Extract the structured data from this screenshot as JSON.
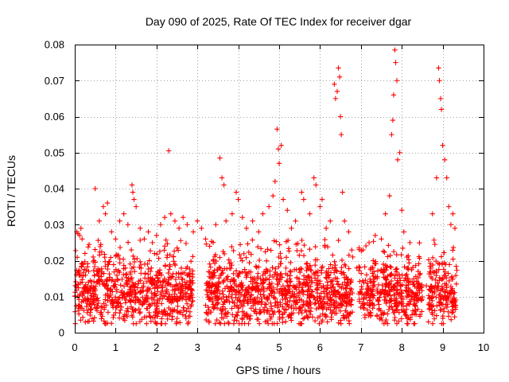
{
  "chart_data": {
    "type": "scatter",
    "title": "Day 090 of 2025, Rate Of TEC Index for receiver dgar",
    "xlabel": "GPS time / hours",
    "ylabel": "ROTI / TECUs",
    "xlim": [
      0,
      10
    ],
    "ylim": [
      0,
      0.08
    ],
    "x_ticks": [
      "0",
      "1",
      "2",
      "3",
      "4",
      "5",
      "6",
      "7",
      "8",
      "9",
      "10"
    ],
    "y_ticks": [
      "0",
      "0.01",
      "0.02",
      "0.03",
      "0.04",
      "0.05",
      "0.06",
      "0.07",
      "0.08"
    ],
    "grid": true,
    "marker": "+",
    "marker_color": "#ff0000",
    "series": [
      {
        "name": "ROTI",
        "points": [
          [
            0.05,
            0.028
          ],
          [
            0.08,
            0.0275
          ],
          [
            0.12,
            0.027
          ],
          [
            0.15,
            0.029
          ],
          [
            0.18,
            0.026
          ],
          [
            0.25,
            0.022
          ],
          [
            0.35,
            0.0245
          ],
          [
            0.45,
            0.021
          ],
          [
            0.5,
            0.04
          ],
          [
            0.6,
            0.031
          ],
          [
            0.7,
            0.035
          ],
          [
            0.75,
            0.033
          ],
          [
            0.8,
            0.036
          ],
          [
            0.9,
            0.028
          ],
          [
            1.0,
            0.026
          ],
          [
            1.1,
            0.031
          ],
          [
            1.2,
            0.033
          ],
          [
            1.3,
            0.03
          ],
          [
            1.4,
            0.041
          ],
          [
            1.42,
            0.039
          ],
          [
            1.45,
            0.037
          ],
          [
            1.5,
            0.035
          ],
          [
            1.6,
            0.029
          ],
          [
            1.7,
            0.026
          ],
          [
            1.8,
            0.028
          ],
          [
            1.9,
            0.025
          ],
          [
            2.0,
            0.027
          ],
          [
            2.1,
            0.03
          ],
          [
            2.2,
            0.032
          ],
          [
            2.3,
            0.0505
          ],
          [
            2.35,
            0.033
          ],
          [
            2.45,
            0.031
          ],
          [
            2.55,
            0.029
          ],
          [
            2.65,
            0.032
          ],
          [
            2.75,
            0.03
          ],
          [
            2.9,
            0.028
          ],
          [
            3.0,
            0.031
          ],
          [
            3.1,
            0.029
          ],
          [
            3.2,
            0.026
          ],
          [
            3.3,
            0.024
          ],
          [
            3.45,
            0.03
          ],
          [
            3.55,
            0.0485
          ],
          [
            3.6,
            0.043
          ],
          [
            3.65,
            0.041
          ],
          [
            3.7,
            0.031
          ],
          [
            3.85,
            0.033
          ],
          [
            3.95,
            0.039
          ],
          [
            4.0,
            0.037
          ],
          [
            4.1,
            0.032
          ],
          [
            4.2,
            0.029
          ],
          [
            4.35,
            0.031
          ],
          [
            4.5,
            0.028
          ],
          [
            4.6,
            0.033
          ],
          [
            4.75,
            0.035
          ],
          [
            4.85,
            0.038
          ],
          [
            4.9,
            0.042
          ],
          [
            4.95,
            0.0565
          ],
          [
            4.98,
            0.051
          ],
          [
            5.0,
            0.047
          ],
          [
            5.05,
            0.052
          ],
          [
            5.1,
            0.037
          ],
          [
            5.2,
            0.034
          ],
          [
            5.3,
            0.029
          ],
          [
            5.4,
            0.031
          ],
          [
            5.55,
            0.039
          ],
          [
            5.6,
            0.037
          ],
          [
            5.75,
            0.033
          ],
          [
            5.85,
            0.043
          ],
          [
            5.9,
            0.041
          ],
          [
            6.0,
            0.035
          ],
          [
            6.05,
            0.037
          ],
          [
            6.15,
            0.029
          ],
          [
            6.25,
            0.031
          ],
          [
            6.35,
            0.069
          ],
          [
            6.38,
            0.065
          ],
          [
            6.42,
            0.067
          ],
          [
            6.45,
            0.0735
          ],
          [
            6.48,
            0.071
          ],
          [
            6.5,
            0.06
          ],
          [
            6.52,
            0.055
          ],
          [
            6.55,
            0.039
          ],
          [
            6.6,
            0.031
          ],
          [
            6.7,
            0.028
          ],
          [
            6.8,
            0.021
          ],
          [
            6.9,
            0.018
          ],
          [
            7.05,
            0.023
          ],
          [
            7.2,
            0.025
          ],
          [
            7.35,
            0.027
          ],
          [
            7.5,
            0.026
          ],
          [
            7.6,
            0.033
          ],
          [
            7.7,
            0.038
          ],
          [
            7.75,
            0.055
          ],
          [
            7.78,
            0.059
          ],
          [
            7.8,
            0.066
          ],
          [
            7.83,
            0.0785
          ],
          [
            7.85,
            0.075
          ],
          [
            7.88,
            0.07
          ],
          [
            7.9,
            0.048
          ],
          [
            7.95,
            0.05
          ],
          [
            8.0,
            0.034
          ],
          [
            8.05,
            0.028
          ],
          [
            8.2,
            0.025
          ],
          [
            8.4,
            0.017
          ],
          [
            8.6,
            0.013
          ],
          [
            8.75,
            0.033
          ],
          [
            8.85,
            0.043
          ],
          [
            8.9,
            0.0735
          ],
          [
            8.92,
            0.07
          ],
          [
            8.95,
            0.065
          ],
          [
            8.97,
            0.062
          ],
          [
            9.0,
            0.052
          ],
          [
            9.05,
            0.048
          ],
          [
            9.1,
            0.043
          ],
          [
            9.15,
            0.035
          ],
          [
            9.2,
            0.03
          ],
          [
            9.25,
            0.033
          ],
          [
            9.3,
            0.029
          ]
        ],
        "dense_band": {
          "segments": [
            [
              0.0,
              2.9
            ],
            [
              3.2,
              6.8
            ],
            [
              6.95,
              8.5
            ],
            [
              8.65,
              9.35
            ]
          ],
          "y_range": [
            0.0025,
            0.026
          ],
          "mean": 0.011
        }
      }
    ]
  }
}
